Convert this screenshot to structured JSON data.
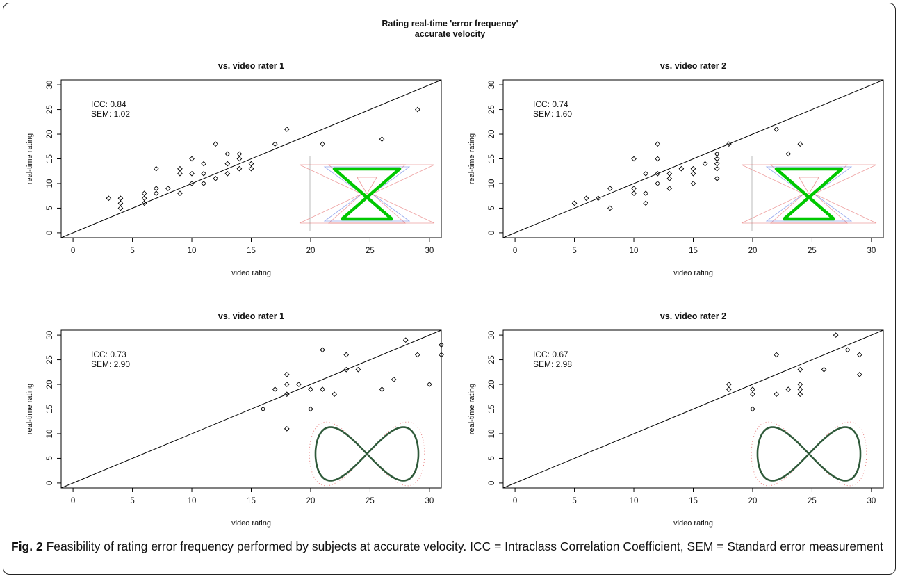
{
  "figure": {
    "title_line1": "Rating real-time 'error frequency'",
    "title_line2": "accurate velocity",
    "caption_label": "Fig. 2",
    "caption_text": " Feasibility of rating error frequency performed by subjects at accurate velocity. ICC = Intraclass Correlation Coefficient, SEM = Standard error measurement"
  },
  "colors": {
    "axis": "#000000",
    "points": "#000000",
    "hourglass": "#00c800",
    "infinity": "#2f5a3a",
    "halo_red": "#e05050",
    "halo_blue": "#4060e0"
  },
  "chart_data": [
    {
      "type": "scatter",
      "title": "vs. video rater 1",
      "xlabel": "video rating",
      "ylabel": "real-time rating",
      "xlim": [
        -1,
        31
      ],
      "ylim": [
        -1,
        31
      ],
      "xticks": [
        0,
        5,
        10,
        15,
        20,
        25,
        30
      ],
      "yticks": [
        0,
        5,
        10,
        15,
        20,
        25,
        30
      ],
      "reference_line": "y = x",
      "annotation": [
        "ICC: 0.84",
        "SEM: 1.02"
      ],
      "inset_icon": "hourglass-trajectory-icon",
      "points": [
        [
          3,
          7
        ],
        [
          4,
          5
        ],
        [
          4,
          6
        ],
        [
          4,
          7
        ],
        [
          6,
          6
        ],
        [
          6,
          7
        ],
        [
          6,
          8
        ],
        [
          7,
          8
        ],
        [
          7,
          9
        ],
        [
          7,
          13
        ],
        [
          8,
          9
        ],
        [
          9,
          8
        ],
        [
          9,
          12
        ],
        [
          9,
          13
        ],
        [
          10,
          10
        ],
        [
          10,
          12
        ],
        [
          10,
          15
        ],
        [
          11,
          10
        ],
        [
          11,
          12
        ],
        [
          11,
          14
        ],
        [
          12,
          11
        ],
        [
          12,
          18
        ],
        [
          13,
          12
        ],
        [
          13,
          14
        ],
        [
          13,
          16
        ],
        [
          14,
          13
        ],
        [
          14,
          15
        ],
        [
          14,
          16
        ],
        [
          15,
          13
        ],
        [
          15,
          14
        ],
        [
          17,
          18
        ],
        [
          18,
          21
        ],
        [
          21,
          18
        ],
        [
          26,
          19
        ],
        [
          29,
          25
        ]
      ]
    },
    {
      "type": "scatter",
      "title": "vs. video rater 2",
      "xlabel": "video rating",
      "ylabel": "real-time rating",
      "xlim": [
        -1,
        31
      ],
      "ylim": [
        -1,
        31
      ],
      "xticks": [
        0,
        5,
        10,
        15,
        20,
        25,
        30
      ],
      "yticks": [
        0,
        5,
        10,
        15,
        20,
        25,
        30
      ],
      "reference_line": "y = x",
      "annotation": [
        "ICC: 0.74",
        "SEM: 1.60"
      ],
      "inset_icon": "hourglass-trajectory-icon",
      "points": [
        [
          5,
          6
        ],
        [
          6,
          7
        ],
        [
          7,
          7
        ],
        [
          8,
          5
        ],
        [
          8,
          9
        ],
        [
          10,
          8
        ],
        [
          10,
          9
        ],
        [
          10,
          15
        ],
        [
          11,
          6
        ],
        [
          11,
          8
        ],
        [
          11,
          12
        ],
        [
          12,
          10
        ],
        [
          12,
          12
        ],
        [
          12,
          15
        ],
        [
          12,
          18
        ],
        [
          13,
          9
        ],
        [
          13,
          11
        ],
        [
          13,
          12
        ],
        [
          14,
          13
        ],
        [
          15,
          10
        ],
        [
          15,
          12
        ],
        [
          15,
          13
        ],
        [
          16,
          14
        ],
        [
          17,
          11
        ],
        [
          17,
          13
        ],
        [
          17,
          14
        ],
        [
          17,
          15
        ],
        [
          17,
          16
        ],
        [
          18,
          18
        ],
        [
          22,
          21
        ],
        [
          23,
          16
        ],
        [
          24,
          18
        ]
      ]
    },
    {
      "type": "scatter",
      "title": "vs. video rater 1",
      "xlabel": "video rating",
      "ylabel": "real-time rating",
      "xlim": [
        -1,
        31
      ],
      "ylim": [
        -1,
        31
      ],
      "xticks": [
        0,
        5,
        10,
        15,
        20,
        25,
        30
      ],
      "yticks": [
        0,
        5,
        10,
        15,
        20,
        25,
        30
      ],
      "reference_line": "y = x",
      "annotation": [
        "ICC: 0.73",
        "SEM: 2.90"
      ],
      "inset_icon": "infinity-trajectory-icon",
      "points": [
        [
          16,
          15
        ],
        [
          17,
          19
        ],
        [
          18,
          11
        ],
        [
          18,
          18
        ],
        [
          18,
          20
        ],
        [
          18,
          22
        ],
        [
          19,
          20
        ],
        [
          20,
          15
        ],
        [
          20,
          19
        ],
        [
          21,
          19
        ],
        [
          21,
          27
        ],
        [
          22,
          18
        ],
        [
          23,
          23
        ],
        [
          23,
          26
        ],
        [
          24,
          23
        ],
        [
          26,
          19
        ],
        [
          27,
          21
        ],
        [
          28,
          29
        ],
        [
          29,
          26
        ],
        [
          30,
          20
        ],
        [
          31,
          26
        ],
        [
          31,
          28
        ]
      ]
    },
    {
      "type": "scatter",
      "title": "vs. video rater 2",
      "xlabel": "video rating",
      "ylabel": "real-time rating",
      "xlim": [
        -1,
        31
      ],
      "ylim": [
        -1,
        31
      ],
      "xticks": [
        0,
        5,
        10,
        15,
        20,
        25,
        30
      ],
      "yticks": [
        0,
        5,
        10,
        15,
        20,
        25,
        30
      ],
      "reference_line": "y = x",
      "annotation": [
        "ICC: 0.67",
        "SEM: 2.98"
      ],
      "inset_icon": "infinity-trajectory-icon",
      "points": [
        [
          18,
          19
        ],
        [
          18,
          20
        ],
        [
          20,
          15
        ],
        [
          20,
          18
        ],
        [
          20,
          19
        ],
        [
          22,
          18
        ],
        [
          22,
          26
        ],
        [
          23,
          19
        ],
        [
          24,
          18
        ],
        [
          24,
          19
        ],
        [
          24,
          20
        ],
        [
          24,
          23
        ],
        [
          26,
          23
        ],
        [
          27,
          30
        ],
        [
          28,
          27
        ],
        [
          29,
          22
        ],
        [
          29,
          26
        ]
      ]
    }
  ]
}
